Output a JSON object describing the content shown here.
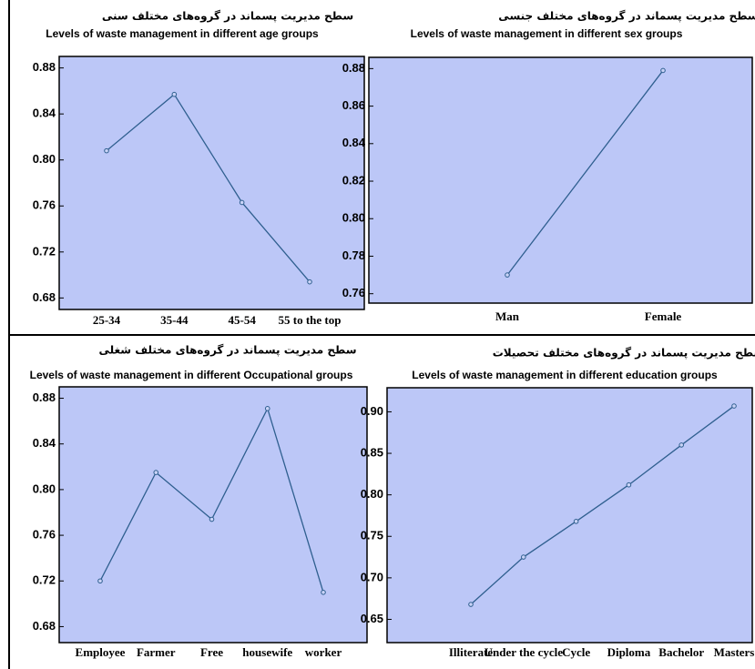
{
  "chart_data": [
    {
      "type": "line",
      "title": "سطح مدیریت پسماند در گروه‌های مختلف سنی",
      "subtitle": "Levels of waste management in different age groups",
      "categories": [
        "25-34",
        "35-44",
        "45-54",
        "55 to the top"
      ],
      "values": [
        0.808,
        0.857,
        0.763,
        0.694
      ],
      "color": "#2f5f8f",
      "ylim": [
        0.67,
        0.89
      ],
      "yticks": [
        0.68,
        0.72,
        0.76,
        {
          "value": 0.8,
          "label": "0.80"
        },
        0.84,
        0.88
      ]
    },
    {
      "type": "line",
      "title": "سطح مدیریت پسماند در گروه‌های مختلف جنسی",
      "subtitle": "Levels of waste management in different sex  groups",
      "categories": [
        "Man",
        "Female"
      ],
      "values": [
        0.77,
        0.879
      ],
      "color": "#2f5f8f",
      "ylim": [
        0.755,
        0.886
      ],
      "yticks": [
        0.76,
        0.78,
        {
          "value": 0.8,
          "label": "0.80"
        },
        0.82,
        0.84,
        0.86,
        0.88
      ]
    },
    {
      "type": "line",
      "title": "سطح مدیریت پسماند در گروه‌های مختلف شغلی",
      "subtitle": "Levels of waste management in different Occupational groups",
      "categories": [
        "Employee",
        "Farmer",
        "Free",
        "housewife",
        "worker"
      ],
      "values": [
        0.72,
        0.815,
        0.774,
        0.871,
        0.71
      ],
      "color": "#2f5f8f",
      "ylim": [
        0.666,
        0.89
      ],
      "yticks": [
        0.68,
        0.72,
        0.76,
        {
          "value": 0.8,
          "label": "0.80"
        },
        0.84,
        0.88
      ]
    },
    {
      "type": "line",
      "title": "سطح مدیریت پسماند در گروه‌های مختلف تحصیلات",
      "subtitle": "Levels of waste management in different education  groups",
      "categories": [
        "Illiterate",
        "Under the cycle",
        "Cycle",
        "Diploma",
        "Bachelor",
        "Masters"
      ],
      "values": [
        0.668,
        0.725,
        0.768,
        0.812,
        0.86,
        0.907
      ],
      "color": "#2f5f8f",
      "ylim": [
        0.622,
        0.929
      ],
      "yticks": [
        0.65,
        {
          "value": 0.7,
          "label": "0.70"
        },
        0.75,
        {
          "value": 0.8,
          "label": "0.80"
        },
        0.85,
        {
          "value": 0.9,
          "label": "0.90"
        }
      ]
    }
  ]
}
